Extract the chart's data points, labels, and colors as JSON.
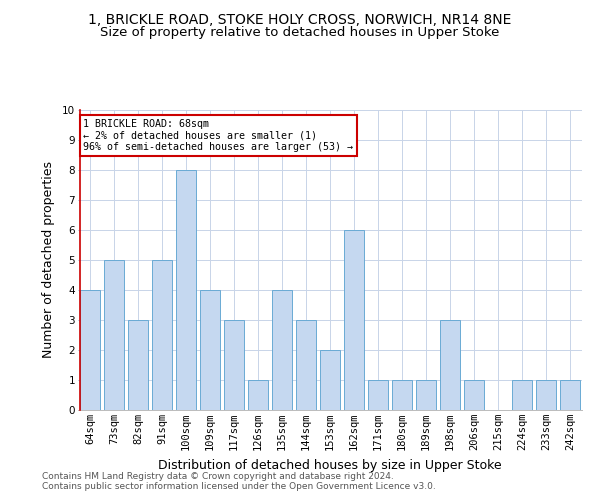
{
  "title1": "1, BRICKLE ROAD, STOKE HOLY CROSS, NORWICH, NR14 8NE",
  "title2": "Size of property relative to detached houses in Upper Stoke",
  "xlabel": "Distribution of detached houses by size in Upper Stoke",
  "ylabel": "Number of detached properties",
  "categories": [
    "64sqm",
    "73sqm",
    "82sqm",
    "91sqm",
    "100sqm",
    "109sqm",
    "117sqm",
    "126sqm",
    "135sqm",
    "144sqm",
    "153sqm",
    "162sqm",
    "171sqm",
    "180sqm",
    "189sqm",
    "198sqm",
    "206sqm",
    "215sqm",
    "224sqm",
    "233sqm",
    "242sqm"
  ],
  "values": [
    4,
    5,
    3,
    5,
    8,
    4,
    3,
    1,
    4,
    3,
    2,
    6,
    1,
    1,
    1,
    3,
    1,
    0,
    1,
    1,
    1
  ],
  "bar_color": "#c5d8f0",
  "bar_edge_color": "#6aaad4",
  "annotation_box_text": "1 BRICKLE ROAD: 68sqm\n← 2% of detached houses are smaller (1)\n96% of semi-detached houses are larger (53) →",
  "annotation_box_color": "#ffffff",
  "annotation_box_edge_color": "#cc0000",
  "ylim": [
    0,
    10
  ],
  "yticks": [
    0,
    1,
    2,
    3,
    4,
    5,
    6,
    7,
    8,
    9,
    10
  ],
  "footer1": "Contains HM Land Registry data © Crown copyright and database right 2024.",
  "footer2": "Contains public sector information licensed under the Open Government Licence v3.0.",
  "background_color": "#ffffff",
  "grid_color": "#c8d4e8",
  "title1_fontsize": 10,
  "title2_fontsize": 9.5,
  "xlabel_fontsize": 9,
  "ylabel_fontsize": 9,
  "tick_fontsize": 7.5,
  "footer_fontsize": 6.5,
  "red_line_color": "#cc0000"
}
